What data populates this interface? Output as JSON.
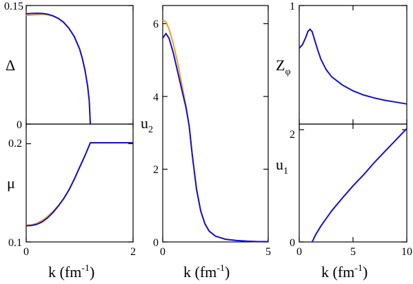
{
  "chart_data": [
    {
      "id": "delta",
      "type": "line",
      "ylabel": "Δ",
      "xlim": [
        0,
        2
      ],
      "ylim": [
        0,
        0.15
      ],
      "xticks": [
        0,
        2
      ],
      "yticks": [
        {
          "v": 0,
          "label": "0"
        },
        {
          "v": 0.15,
          "label": "0.15"
        }
      ],
      "series": [
        {
          "color": "#f0a020",
          "x": [
            0,
            0.1,
            0.2,
            0.3,
            0.4,
            0.5,
            0.6,
            0.7,
            0.8,
            0.9,
            1.0,
            1.05,
            1.1,
            1.15,
            1.18,
            1.2
          ],
          "y": [
            0.1375,
            0.138,
            0.1385,
            0.139,
            0.1385,
            0.1365,
            0.1335,
            0.1285,
            0.121,
            0.1105,
            0.095,
            0.083,
            0.068,
            0.048,
            0.03,
            0
          ]
        },
        {
          "color": "#1010d0",
          "x": [
            0,
            0.1,
            0.2,
            0.3,
            0.4,
            0.5,
            0.6,
            0.7,
            0.8,
            0.9,
            1.0,
            1.05,
            1.1,
            1.15,
            1.18,
            1.2
          ],
          "y": [
            0.1395,
            0.14,
            0.1402,
            0.14,
            0.139,
            0.137,
            0.1338,
            0.1288,
            0.1212,
            0.1106,
            0.095,
            0.083,
            0.068,
            0.048,
            0.03,
            0
          ]
        }
      ]
    },
    {
      "id": "mu",
      "type": "line",
      "ylabel": "μ",
      "xlabel": "k (fm",
      "xlabel_sup": "-1",
      "xlabel_end": ")",
      "xlim": [
        0,
        2
      ],
      "ylim": [
        0.1,
        0.22
      ],
      "xticks": [
        {
          "v": 0,
          "label": "0"
        },
        {
          "v": 2,
          "label": "2"
        }
      ],
      "yticks": [
        {
          "v": 0.1,
          "label": "0.1"
        },
        {
          "v": 0.2,
          "label": "0.2"
        }
      ],
      "series": [
        {
          "color": "#f0a020",
          "x": [
            0,
            0.1,
            0.2,
            0.3,
            0.4,
            0.5,
            0.6,
            0.7,
            0.8,
            0.9,
            1.0,
            1.1,
            1.2,
            1.5,
            2.0
          ],
          "y": [
            0.117,
            0.1175,
            0.119,
            0.122,
            0.126,
            0.131,
            0.137,
            0.144,
            0.153,
            0.164,
            0.176,
            0.188,
            0.201,
            0.201,
            0.201
          ]
        },
        {
          "color": "#1010d0",
          "x": [
            0,
            0.1,
            0.2,
            0.3,
            0.4,
            0.5,
            0.6,
            0.7,
            0.8,
            0.9,
            1.0,
            1.1,
            1.2,
            1.5,
            2.0
          ],
          "y": [
            0.1165,
            0.1168,
            0.118,
            0.1205,
            0.1245,
            0.13,
            0.1365,
            0.144,
            0.153,
            0.164,
            0.176,
            0.188,
            0.201,
            0.201,
            0.201
          ]
        }
      ]
    },
    {
      "id": "u2",
      "type": "line",
      "ylabel": "u",
      "ylabel_sub": "2",
      "xlabel": "k (fm",
      "xlabel_sup": "-1",
      "xlabel_end": ")",
      "xlim": [
        0,
        5
      ],
      "ylim": [
        0,
        6.5
      ],
      "xticks": [
        {
          "v": 0,
          "label": "0"
        },
        {
          "v": 5,
          "label": "5"
        }
      ],
      "yticks": [
        {
          "v": 0,
          "label": "0"
        },
        {
          "v": 2,
          "label": "2"
        },
        {
          "v": 4,
          "label": "4"
        },
        {
          "v": 6,
          "label": "6"
        }
      ],
      "series": [
        {
          "color": "#f0a020",
          "x": [
            0,
            0.15,
            0.3,
            0.5,
            0.7,
            0.9,
            1.1,
            1.25,
            1.4,
            1.6,
            1.8,
            2.0,
            2.2,
            2.5,
            3.0,
            3.5,
            4.0,
            4.5,
            5.0
          ],
          "y": [
            6.1,
            6.05,
            5.85,
            5.45,
            4.95,
            4.35,
            3.75,
            3.2,
            2.4,
            1.45,
            0.85,
            0.5,
            0.3,
            0.16,
            0.07,
            0.04,
            0.02,
            0.01,
            0.01
          ]
        },
        {
          "color": "#1010d0",
          "x": [
            0,
            0.15,
            0.3,
            0.5,
            0.7,
            0.9,
            1.1,
            1.25,
            1.4,
            1.6,
            1.8,
            2.0,
            2.2,
            2.5,
            3.0,
            3.5,
            4.0,
            4.5,
            5.0
          ],
          "y": [
            5.6,
            5.73,
            5.6,
            5.2,
            4.7,
            4.2,
            3.7,
            3.2,
            2.4,
            1.45,
            0.85,
            0.5,
            0.3,
            0.16,
            0.07,
            0.04,
            0.02,
            0.01,
            0.01
          ]
        }
      ]
    },
    {
      "id": "zphi",
      "type": "line",
      "ylabel": "Z",
      "ylabel_sub": "φ",
      "xlim": [
        0,
        10
      ],
      "ylim": [
        0,
        1
      ],
      "xticks": [
        0,
        5,
        10
      ],
      "yticks": [
        {
          "v": 1,
          "label": "1"
        }
      ],
      "series": [
        {
          "color": "#1010d0",
          "x": [
            0,
            0.3,
            0.6,
            0.8,
            1.0,
            1.2,
            1.4,
            1.7,
            2.0,
            2.5,
            3.0,
            4.0,
            5.0,
            6.0,
            7.0,
            8.0,
            9.0,
            10.0
          ],
          "y": [
            0.64,
            0.67,
            0.73,
            0.78,
            0.8,
            0.78,
            0.72,
            0.63,
            0.55,
            0.46,
            0.4,
            0.33,
            0.28,
            0.245,
            0.22,
            0.2,
            0.185,
            0.17
          ]
        }
      ]
    },
    {
      "id": "u1",
      "type": "line",
      "ylabel": "u",
      "ylabel_sub": "1",
      "xlabel": "k (fm",
      "xlabel_sup": "-1",
      "xlabel_end": ")",
      "xlim": [
        0,
        10
      ],
      "ylim": [
        0,
        2.1
      ],
      "xticks": [
        {
          "v": 0,
          "label": "0"
        },
        {
          "v": 5,
          "label": "5"
        },
        {
          "v": 10,
          "label": "10"
        }
      ],
      "yticks": [
        {
          "v": 0,
          "label": "0"
        },
        {
          "v": 2,
          "label": "2"
        }
      ],
      "series": [
        {
          "color": "#1010d0",
          "x": [
            1.2,
            1.5,
            2.0,
            3.0,
            4.0,
            5.0,
            6.0,
            7.0,
            8.0,
            9.0,
            10.0
          ],
          "y": [
            0,
            0.12,
            0.28,
            0.55,
            0.78,
            1.0,
            1.2,
            1.42,
            1.62,
            1.82,
            2.02
          ]
        }
      ]
    }
  ]
}
